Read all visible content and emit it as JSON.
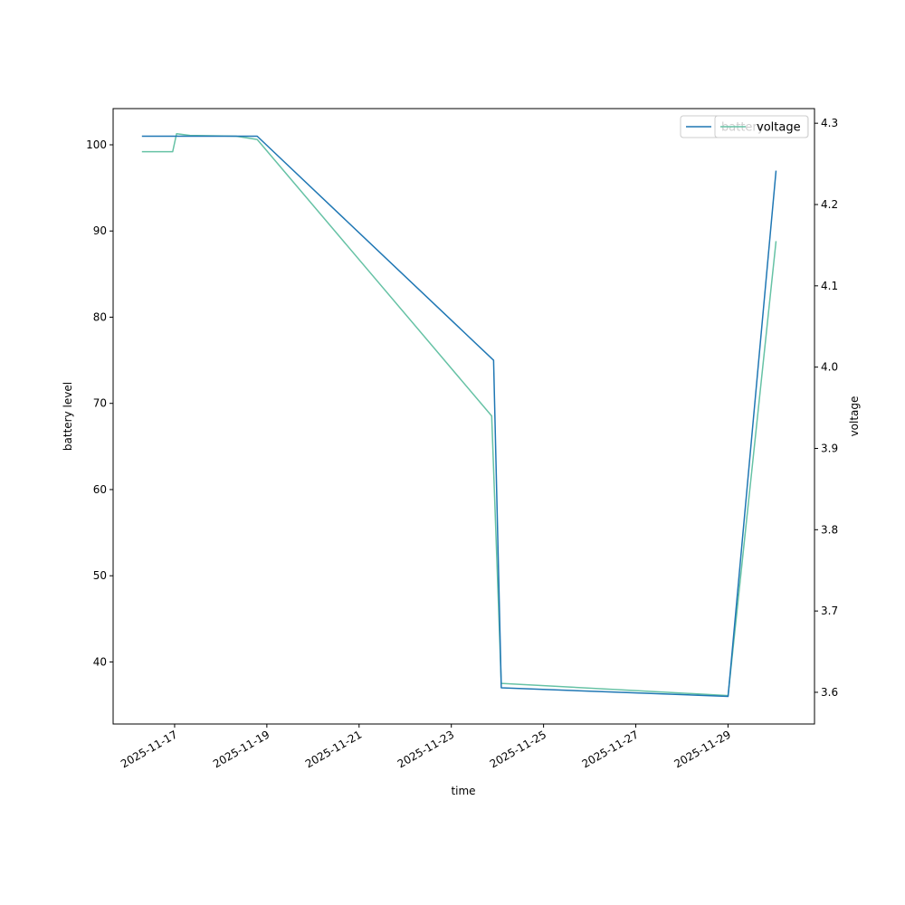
{
  "chart_data": {
    "type": "line",
    "xlabel": "time",
    "ylabel_left": "battery level",
    "ylabel_right": "voltage",
    "x_ticks": [
      "2025-11-17",
      "2025-11-19",
      "2025-11-21",
      "2025-11-23",
      "2025-11-25",
      "2025-11-27",
      "2025-11-29"
    ],
    "y_left_ticks": [
      40,
      50,
      60,
      70,
      80,
      90,
      100
    ],
    "y_right_ticks": [
      3.6,
      3.7,
      3.8,
      3.9,
      4.0,
      4.1,
      4.2,
      4.3
    ],
    "xlim": [
      "2025-11-15T16:00",
      "2025-11-30T21:00"
    ],
    "ylim_left": [
      32.8,
      104.2
    ],
    "ylim_right": [
      3.561,
      4.318
    ],
    "grid": false,
    "legend_location": "top-right",
    "series": [
      {
        "name": "battery",
        "axis": "left",
        "color": "#1f77b4",
        "x": [
          "2025-11-16T07:00",
          "2025-11-17T00:00",
          "2025-11-18T19:00",
          "2025-11-23T22:00",
          "2025-11-24T02:00",
          "2025-11-29T00:00",
          "2025-11-30T01:00"
        ],
        "values": [
          101,
          101,
          101,
          75,
          37,
          36,
          97
        ]
      },
      {
        "name": "voltage",
        "axis": "right",
        "color": "#66c2a5",
        "x": [
          "2025-11-16T07:00",
          "2025-11-16T23:00",
          "2025-11-17T01:00",
          "2025-11-17T08:00",
          "2025-11-18T08:00",
          "2025-11-18T19:00",
          "2025-11-23T21:00",
          "2025-11-24T02:00",
          "2025-11-29T00:00",
          "2025-11-30T01:00"
        ],
        "values": [
          4.265,
          4.265,
          4.287,
          4.285,
          4.284,
          4.28,
          3.94,
          3.611,
          3.596,
          4.155
        ]
      }
    ],
    "legends": [
      {
        "entries": [
          "battery"
        ]
      },
      {
        "entries": [
          "voltage"
        ]
      }
    ]
  }
}
